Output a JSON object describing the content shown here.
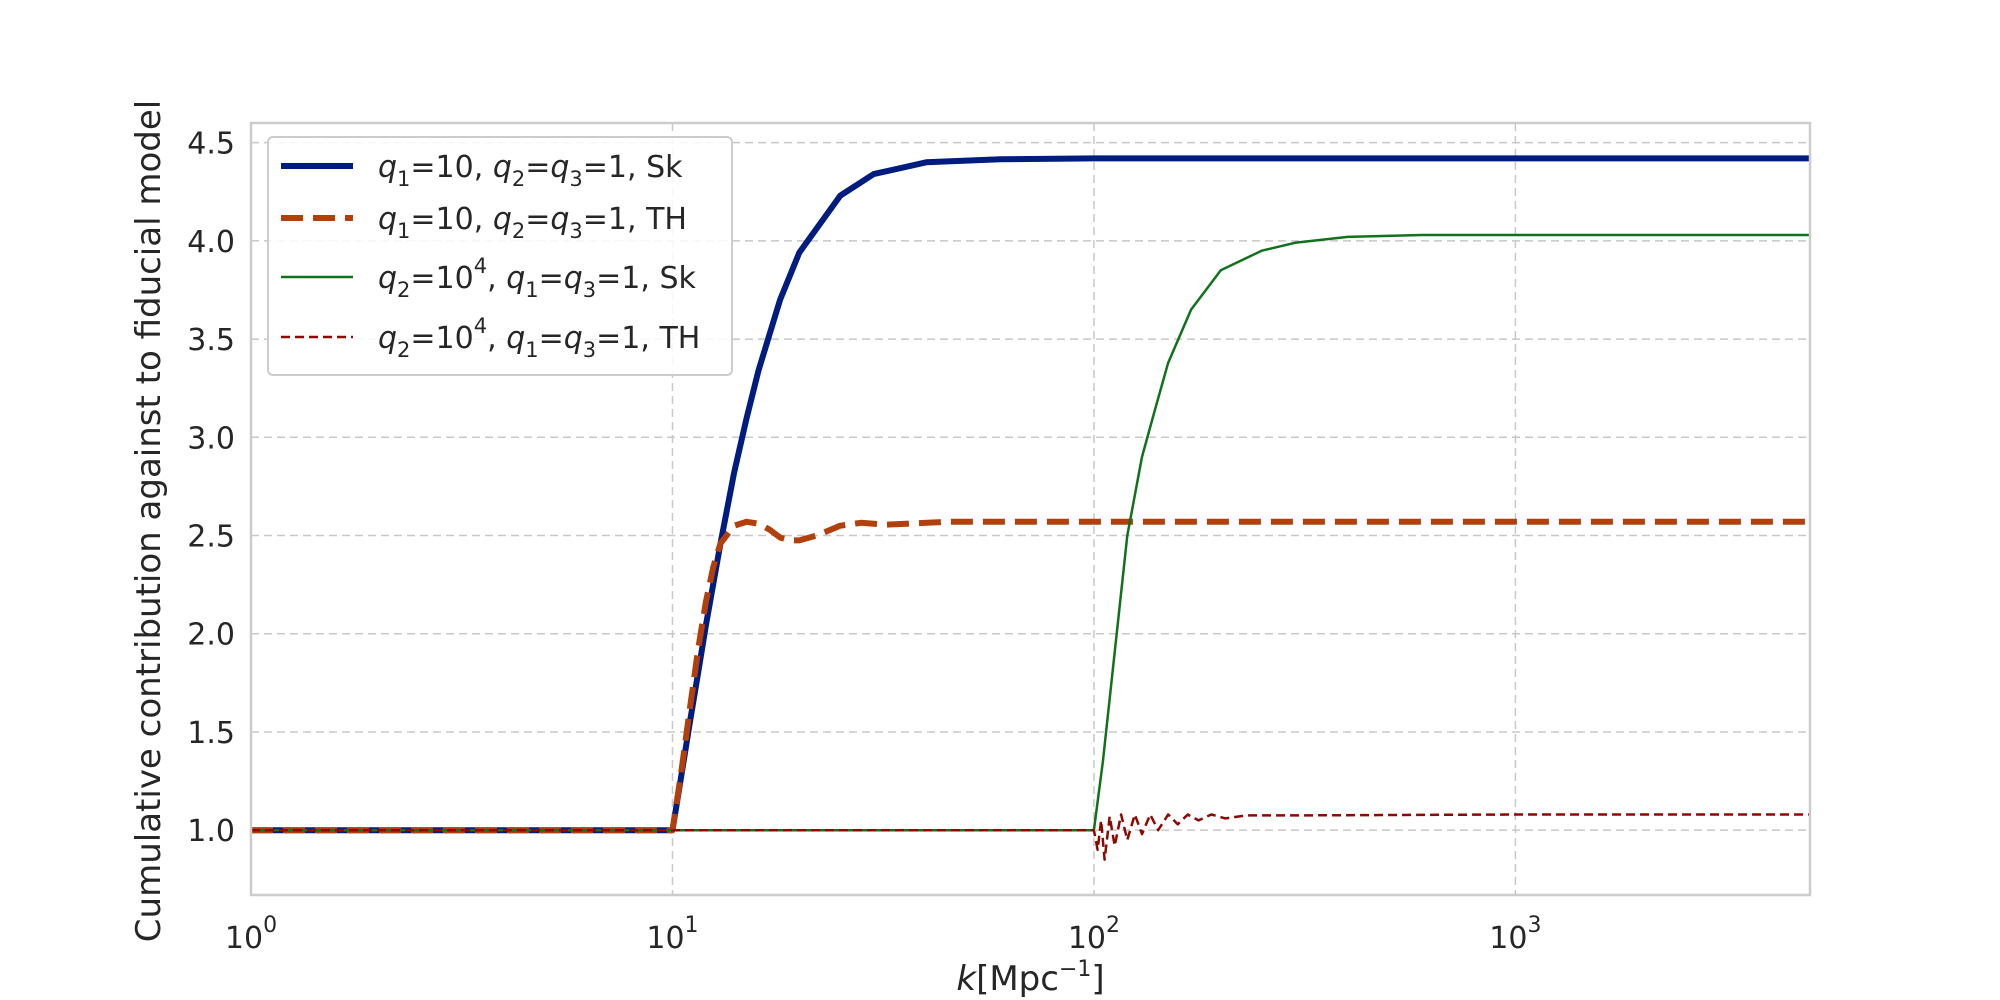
{
  "chart_data": {
    "type": "line",
    "title": "",
    "xlabel": {
      "base": "k",
      "bracket_open": "[Mpc",
      "sup": "−1",
      "bracket_close": "]"
    },
    "ylabel": "Cumulative contribution against to fiducial model",
    "xscale": "log",
    "xlim": [
      1,
      5000
    ],
    "ylim": [
      0.67,
      4.6
    ],
    "grid": true,
    "legend_position": "top-left",
    "x_ticks": [
      {
        "value": 1,
        "base": "10",
        "exp": "0"
      },
      {
        "value": 10,
        "base": "10",
        "exp": "1"
      },
      {
        "value": 100,
        "base": "10",
        "exp": "2"
      },
      {
        "value": 1000,
        "base": "10",
        "exp": "3"
      }
    ],
    "y_ticks": [
      {
        "value": 1.0,
        "label": "1.0"
      },
      {
        "value": 1.5,
        "label": "1.5"
      },
      {
        "value": 2.0,
        "label": "2.0"
      },
      {
        "value": 2.5,
        "label": "2.5"
      },
      {
        "value": 3.0,
        "label": "3.0"
      },
      {
        "value": 3.5,
        "label": "3.5"
      },
      {
        "value": 4.0,
        "label": "4.0"
      },
      {
        "value": 4.5,
        "label": "4.5"
      }
    ],
    "series": [
      {
        "id": "s1",
        "legend": [
          {
            "t": "q",
            "i": true
          },
          {
            "t": "1",
            "sub": true
          },
          {
            "t": "=10, "
          },
          {
            "t": "q",
            "i": true
          },
          {
            "t": "2",
            "sub": true
          },
          {
            "t": "="
          },
          {
            "t": "q",
            "i": true
          },
          {
            "t": "3",
            "sub": true
          },
          {
            "t": "=1, Sk"
          }
        ],
        "color": "#001c7f",
        "style": "solid",
        "width": 6,
        "points": [
          [
            1,
            1.0
          ],
          [
            10,
            1.0
          ],
          [
            10.5,
            1.28
          ],
          [
            11,
            1.55
          ],
          [
            11.5,
            1.8
          ],
          [
            12,
            2.04
          ],
          [
            13,
            2.46
          ],
          [
            14,
            2.82
          ],
          [
            15,
            3.1
          ],
          [
            16,
            3.34
          ],
          [
            18,
            3.7
          ],
          [
            20,
            3.94
          ],
          [
            25,
            4.23
          ],
          [
            30,
            4.34
          ],
          [
            40,
            4.4
          ],
          [
            60,
            4.415
          ],
          [
            100,
            4.42
          ],
          [
            5000,
            4.42
          ]
        ]
      },
      {
        "id": "s2",
        "legend": [
          {
            "t": "q",
            "i": true
          },
          {
            "t": "1",
            "sub": true
          },
          {
            "t": "=10, "
          },
          {
            "t": "q",
            "i": true
          },
          {
            "t": "2",
            "sub": true
          },
          {
            "t": "="
          },
          {
            "t": "q",
            "i": true
          },
          {
            "t": "3",
            "sub": true
          },
          {
            "t": "=1, TH"
          }
        ],
        "color": "#b1400d",
        "style": "dashed",
        "width": 6,
        "points": [
          [
            1,
            1.0
          ],
          [
            10,
            1.0
          ],
          [
            10.5,
            1.3
          ],
          [
            11,
            1.62
          ],
          [
            11.5,
            1.92
          ],
          [
            12,
            2.16
          ],
          [
            12.5,
            2.34
          ],
          [
            13,
            2.46
          ],
          [
            14,
            2.55
          ],
          [
            15,
            2.57
          ],
          [
            16,
            2.56
          ],
          [
            17,
            2.53
          ],
          [
            18,
            2.49
          ],
          [
            19,
            2.475
          ],
          [
            20,
            2.475
          ],
          [
            22,
            2.5
          ],
          [
            25,
            2.55
          ],
          [
            28,
            2.565
          ],
          [
            32,
            2.555
          ],
          [
            36,
            2.56
          ],
          [
            45,
            2.57
          ],
          [
            60,
            2.57
          ],
          [
            100,
            2.57
          ],
          [
            5000,
            2.57
          ]
        ]
      },
      {
        "id": "s3",
        "legend": [
          {
            "t": "q",
            "i": true
          },
          {
            "t": "2",
            "sub": true
          },
          {
            "t": "=10"
          },
          {
            "t": "4",
            "sup": true
          },
          {
            "t": ", "
          },
          {
            "t": "q",
            "i": true
          },
          {
            "t": "1",
            "sub": true
          },
          {
            "t": "="
          },
          {
            "t": "q",
            "i": true
          },
          {
            "t": "3",
            "sub": true
          },
          {
            "t": "=1, Sk"
          }
        ],
        "color": "#12711c",
        "style": "solid",
        "width": 2.5,
        "points": [
          [
            1,
            1.0
          ],
          [
            100,
            1.0
          ],
          [
            105,
            1.35
          ],
          [
            110,
            1.75
          ],
          [
            120,
            2.5
          ],
          [
            130,
            2.9
          ],
          [
            140,
            3.15
          ],
          [
            150,
            3.38
          ],
          [
            170,
            3.65
          ],
          [
            200,
            3.85
          ],
          [
            250,
            3.95
          ],
          [
            300,
            3.99
          ],
          [
            400,
            4.02
          ],
          [
            600,
            4.03
          ],
          [
            1000,
            4.03
          ],
          [
            5000,
            4.03
          ]
        ]
      },
      {
        "id": "s4",
        "legend": [
          {
            "t": "q",
            "i": true
          },
          {
            "t": "2",
            "sub": true
          },
          {
            "t": "=10"
          },
          {
            "t": "4",
            "sup": true
          },
          {
            "t": ", "
          },
          {
            "t": "q",
            "i": true
          },
          {
            "t": "1",
            "sub": true
          },
          {
            "t": "="
          },
          {
            "t": "q",
            "i": true
          },
          {
            "t": "3",
            "sub": true
          },
          {
            "t": "=1, TH"
          }
        ],
        "color": "#8c0800",
        "style": "dashed",
        "width": 2.5,
        "points": [
          [
            1,
            1.0
          ],
          [
            100,
            1.0
          ],
          [
            102,
            0.9
          ],
          [
            104,
            1.05
          ],
          [
            106,
            0.85
          ],
          [
            109,
            1.07
          ],
          [
            112,
            0.92
          ],
          [
            116,
            1.08
          ],
          [
            120,
            0.95
          ],
          [
            125,
            1.08
          ],
          [
            130,
            0.98
          ],
          [
            136,
            1.08
          ],
          [
            142,
            1.0
          ],
          [
            150,
            1.08
          ],
          [
            158,
            1.03
          ],
          [
            167,
            1.08
          ],
          [
            177,
            1.05
          ],
          [
            190,
            1.08
          ],
          [
            205,
            1.06
          ],
          [
            230,
            1.075
          ],
          [
            300,
            1.075
          ],
          [
            1000,
            1.08
          ],
          [
            5000,
            1.08
          ]
        ]
      }
    ]
  }
}
